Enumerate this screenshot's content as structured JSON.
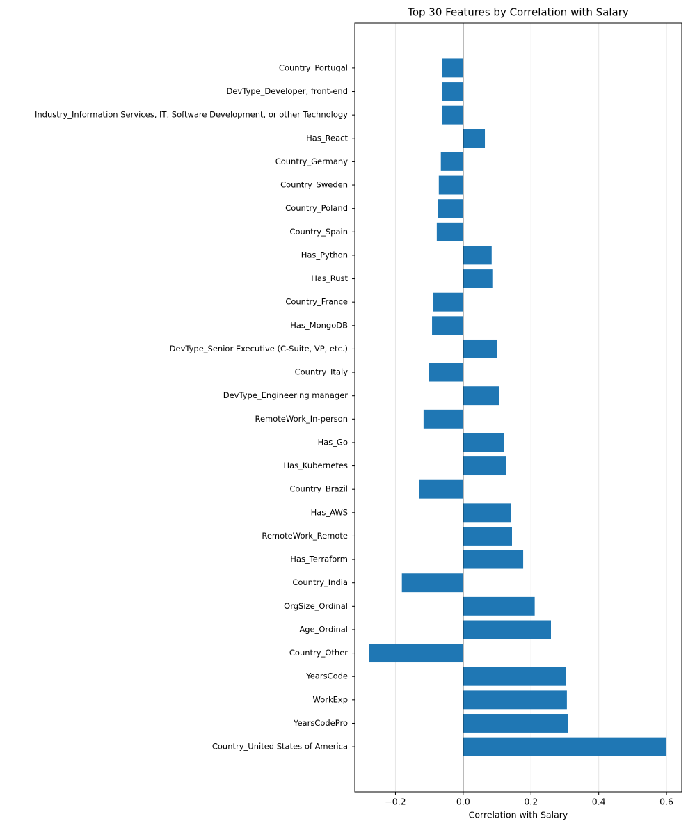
{
  "chart_data": {
    "type": "barh",
    "title": "Top 30 Features by Correlation with Salary",
    "x_label": "Correlation with Salary",
    "color": "#1f77b4",
    "grid": true,
    "categories": [
      "Country_United States of America",
      "YearsCodePro",
      "WorkExp",
      "YearsCode",
      "Country_Other",
      "Age_Ordinal",
      "OrgSize_Ordinal",
      "Country_India",
      "Has_Terraform",
      "RemoteWork_Remote",
      "Has_AWS",
      "Country_Brazil",
      "Has_Kubernetes",
      "Has_Go",
      "RemoteWork_In-person",
      "DevType_Engineering manager",
      "Country_Italy",
      "DevType_Senior Executive (C-Suite, VP, etc.)",
      "Has_MongoDB",
      "Country_France",
      "Has_Rust",
      "Has_Python",
      "Country_Spain",
      "Country_Poland",
      "Country_Sweden",
      "Country_Germany",
      "Has_React",
      "Industry_Information Services, IT, Software Development, or other Technology",
      "DevType_Developer, front-end",
      "Country_Portugal"
    ],
    "values": [
      0.6,
      0.31,
      0.306,
      0.304,
      -0.277,
      0.259,
      0.211,
      -0.181,
      0.177,
      0.144,
      0.14,
      -0.131,
      0.127,
      0.121,
      -0.117,
      0.107,
      -0.101,
      0.099,
      -0.092,
      -0.088,
      0.086,
      0.084,
      -0.078,
      -0.074,
      -0.072,
      -0.066,
      0.064,
      -0.062,
      -0.062,
      -0.062
    ],
    "xlim": [
      -0.32,
      0.645
    ],
    "xticks": [
      {
        "value": -0.2,
        "label": "−0.2"
      },
      {
        "value": 0,
        "label": "0.0"
      },
      0.2,
      0.4,
      0.6
    ]
  }
}
